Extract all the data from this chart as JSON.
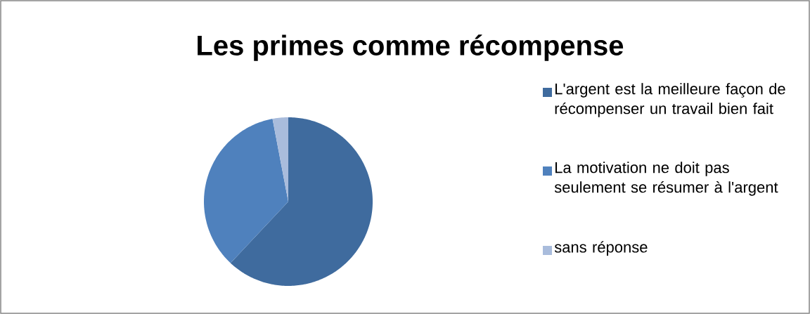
{
  "chart_data": {
    "type": "pie",
    "title": "Les primes comme récompense",
    "categories": [
      "L'argent est la meilleure façon de récompenser un travail bien fait",
      "La motivation ne doit pas seulement se résumer à l'argent",
      "sans réponse"
    ],
    "values": [
      62,
      35,
      3
    ],
    "colors": [
      "#3f6b9e",
      "#4f81bd",
      "#a9bcdc"
    ],
    "legend": "right"
  }
}
